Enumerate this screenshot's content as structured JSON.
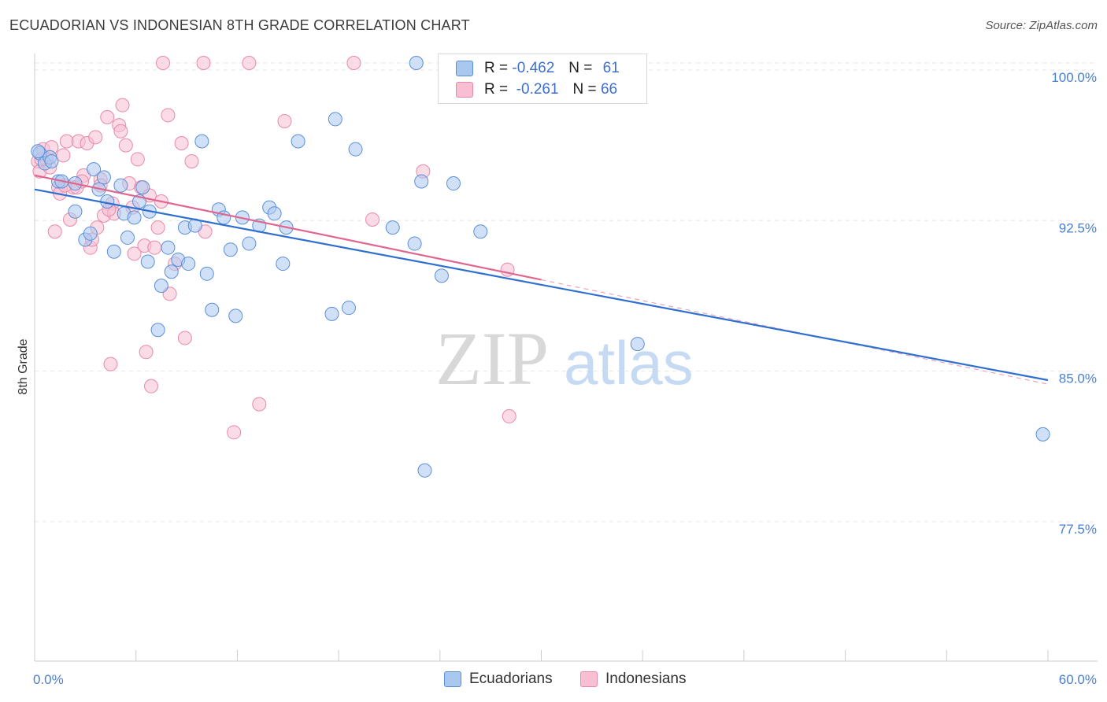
{
  "header": {
    "title": "ECUADORIAN VS INDONESIAN 8TH GRADE CORRELATION CHART",
    "source": "Source: ZipAtlas.com"
  },
  "legend": {
    "rows": [
      {
        "r_label": "R =",
        "r_value": "-0.462",
        "n_label": "N =",
        "n_value": "61"
      },
      {
        "r_label": "R =",
        "r_value": "-0.261",
        "n_label": "N =",
        "n_value": "66"
      }
    ]
  },
  "watermark": {
    "zip": "ZIP",
    "atlas": "atlas"
  },
  "colors": {
    "ecuadorian_fill": "#a9c8f0",
    "ecuadorian_stroke": "#5b8fd8",
    "ecuadorian_line": "#2f6fd0",
    "indonesian_fill": "#f7bfd1",
    "indonesian_stroke": "#e889a8",
    "indonesian_line": "#e0668f",
    "tick_color": "#4a7fd0"
  },
  "chart_data": {
    "type": "scatter",
    "title": "ECUADORIAN VS INDONESIAN 8TH GRADE CORRELATION CHART",
    "xlabel": "",
    "ylabel": "8th Grade",
    "xlim": [
      0,
      60
    ],
    "ylim": [
      70.0,
      100.8
    ],
    "x_tick_labels": [
      "0.0%",
      "60.0%"
    ],
    "y_ticks": [
      100.0,
      92.5,
      85.0,
      77.5
    ],
    "y_tick_labels": [
      "100.0%",
      "92.5%",
      "85.0%",
      "77.5%"
    ],
    "grid": true,
    "legend_position": "top-center",
    "series": [
      {
        "name": "Ecuadorians",
        "trend": {
          "x": [
            0,
            60
          ],
          "y": [
            93.7,
            84.2
          ]
        },
        "points": [
          [
            0.3,
            95.5
          ],
          [
            0.6,
            95.0
          ],
          [
            0.9,
            95.3
          ],
          [
            1.0,
            95.1
          ],
          [
            1.4,
            94.1
          ],
          [
            1.6,
            94.1
          ],
          [
            2.4,
            94.0
          ],
          [
            2.4,
            92.6
          ],
          [
            3.0,
            91.2
          ],
          [
            3.3,
            91.5
          ],
          [
            3.5,
            94.7
          ],
          [
            3.8,
            93.7
          ],
          [
            4.1,
            94.3
          ],
          [
            4.3,
            93.1
          ],
          [
            4.7,
            90.6
          ],
          [
            5.1,
            93.9
          ],
          [
            5.3,
            92.5
          ],
          [
            5.5,
            91.3
          ],
          [
            5.9,
            92.3
          ],
          [
            6.2,
            93.1
          ],
          [
            6.4,
            93.8
          ],
          [
            6.8,
            92.6
          ],
          [
            6.7,
            90.1
          ],
          [
            7.5,
            88.9
          ],
          [
            7.3,
            86.7
          ],
          [
            7.9,
            90.8
          ],
          [
            8.1,
            89.6
          ],
          [
            8.5,
            90.2
          ],
          [
            8.9,
            91.8
          ],
          [
            9.1,
            90.0
          ],
          [
            9.5,
            91.9
          ],
          [
            9.9,
            96.1
          ],
          [
            10.2,
            89.5
          ],
          [
            10.5,
            87.7
          ],
          [
            10.9,
            92.7
          ],
          [
            11.2,
            92.3
          ],
          [
            11.6,
            90.7
          ],
          [
            11.9,
            87.4
          ],
          [
            12.3,
            92.3
          ],
          [
            12.7,
            91.0
          ],
          [
            13.3,
            91.9
          ],
          [
            13.9,
            92.8
          ],
          [
            14.2,
            92.5
          ],
          [
            14.7,
            90.0
          ],
          [
            14.9,
            91.8
          ],
          [
            15.6,
            96.1
          ],
          [
            17.6,
            87.5
          ],
          [
            17.8,
            97.2
          ],
          [
            18.6,
            87.8
          ],
          [
            19.0,
            95.7
          ],
          [
            21.2,
            91.8
          ],
          [
            22.5,
            91.0
          ],
          [
            22.6,
            100.0
          ],
          [
            22.9,
            94.1
          ],
          [
            23.1,
            79.7
          ],
          [
            24.1,
            89.4
          ],
          [
            24.8,
            94.0
          ],
          [
            26.4,
            91.6
          ],
          [
            35.7,
            86.0
          ],
          [
            59.7,
            81.5
          ],
          [
            0.2,
            95.6
          ]
        ]
      },
      {
        "name": "Indonesians",
        "trend": {
          "x": [
            0,
            30
          ],
          "y": [
            94.4,
            89.2
          ]
        },
        "trend_ext": {
          "x": [
            30,
            60
          ],
          "y": [
            89.2,
            84.0
          ]
        },
        "points": [
          [
            0.2,
            95.1
          ],
          [
            0.3,
            94.6
          ],
          [
            0.5,
            95.7
          ],
          [
            0.7,
            95.2
          ],
          [
            0.9,
            94.8
          ],
          [
            1.0,
            95.8
          ],
          [
            1.2,
            91.6
          ],
          [
            1.4,
            93.8
          ],
          [
            1.5,
            93.5
          ],
          [
            1.7,
            95.4
          ],
          [
            1.9,
            96.1
          ],
          [
            2.1,
            92.2
          ],
          [
            2.3,
            93.8
          ],
          [
            2.5,
            93.8
          ],
          [
            2.6,
            96.1
          ],
          [
            2.9,
            94.4
          ],
          [
            3.1,
            96.0
          ],
          [
            3.3,
            90.8
          ],
          [
            3.4,
            91.2
          ],
          [
            3.6,
            96.3
          ],
          [
            3.7,
            91.8
          ],
          [
            3.9,
            94.2
          ],
          [
            4.1,
            92.4
          ],
          [
            4.3,
            97.3
          ],
          [
            4.5,
            85.0
          ],
          [
            4.6,
            93.0
          ],
          [
            4.7,
            92.5
          ],
          [
            5.0,
            96.9
          ],
          [
            5.1,
            96.6
          ],
          [
            5.2,
            97.9
          ],
          [
            5.4,
            95.9
          ],
          [
            5.6,
            94.0
          ],
          [
            5.8,
            92.8
          ],
          [
            5.9,
            90.5
          ],
          [
            6.1,
            95.2
          ],
          [
            6.3,
            93.8
          ],
          [
            6.5,
            90.9
          ],
          [
            6.6,
            85.6
          ],
          [
            6.8,
            93.4
          ],
          [
            6.9,
            83.9
          ],
          [
            7.1,
            90.8
          ],
          [
            7.3,
            91.8
          ],
          [
            7.5,
            93.1
          ],
          [
            7.6,
            100.0
          ],
          [
            7.9,
            97.4
          ],
          [
            8.0,
            88.5
          ],
          [
            8.3,
            90.0
          ],
          [
            8.7,
            96.0
          ],
          [
            8.9,
            86.3
          ],
          [
            9.3,
            95.1
          ],
          [
            10.0,
            100.0
          ],
          [
            10.1,
            91.6
          ],
          [
            11.8,
            81.6
          ],
          [
            12.7,
            100.0
          ],
          [
            13.3,
            83.0
          ],
          [
            14.8,
            97.1
          ],
          [
            18.9,
            100.0
          ],
          [
            20.0,
            92.2
          ],
          [
            23.0,
            94.6
          ],
          [
            28.0,
            89.7
          ],
          [
            28.1,
            82.4
          ],
          [
            4.4,
            92.7
          ],
          [
            3.9,
            93.9
          ],
          [
            2.8,
            94.1
          ],
          [
            1.8,
            93.9
          ],
          [
            0.4,
            95.2
          ]
        ]
      }
    ]
  },
  "bottom_legend": {
    "items": [
      {
        "label": "Ecuadorians"
      },
      {
        "label": "Indonesians"
      }
    ]
  }
}
